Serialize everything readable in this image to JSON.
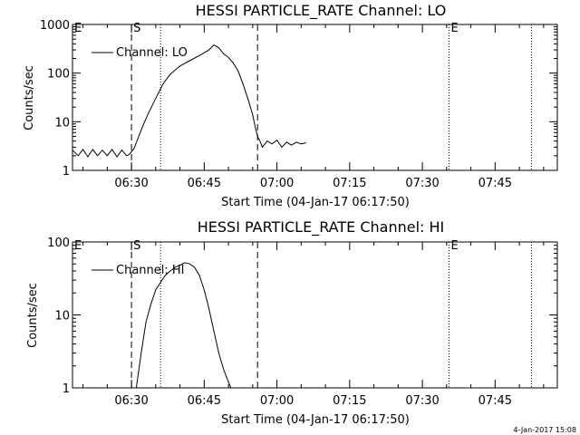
{
  "footer_stamp": "4-Jan-2017 15:08",
  "chart_data": [
    {
      "type": "line",
      "title": "HESSI PARTICLE_RATE Channel: LO",
      "xlabel": "Start Time (04-Jan-17 06:17:50)",
      "ylabel": "Counts/sec",
      "yscale": "log",
      "xlim": [
        "06:17:50",
        "07:57:50"
      ],
      "ylim": [
        1,
        1000
      ],
      "x_ticks": [
        "06:30",
        "06:45",
        "07:00",
        "07:15",
        "07:30",
        "07:45"
      ],
      "y_ticks": [
        "1",
        "10",
        "100",
        "1000"
      ],
      "legend": {
        "label": "Channel: LO",
        "placement": "top-left"
      },
      "markers": [
        {
          "label": "E",
          "time": "06:17:50",
          "style": "dotted"
        },
        {
          "label": "S",
          "time": "06:30:00",
          "style": "dashed"
        },
        {
          "label": "",
          "time": "06:36:00",
          "style": "dotted"
        },
        {
          "label": "",
          "time": "06:56:00",
          "style": "dashed"
        },
        {
          "label": "E",
          "time": "07:35:30",
          "style": "dotted"
        },
        {
          "label": "",
          "time": "07:52:30",
          "style": "dotted"
        }
      ],
      "series": [
        {
          "name": "Channel: LO",
          "x": [
            "06:17:50",
            "06:19:00",
            "06:20:00",
            "06:21:00",
            "06:22:00",
            "06:23:00",
            "06:24:00",
            "06:25:00",
            "06:26:00",
            "06:27:00",
            "06:28:00",
            "06:29:00",
            "06:29:30",
            "06:30:30",
            "06:31:30",
            "06:32:30",
            "06:33:30",
            "06:35:00",
            "06:36:30",
            "06:38:00",
            "06:40:00",
            "06:42:00",
            "06:44:00",
            "06:46:00",
            "06:47:00",
            "06:48:00",
            "06:49:00",
            "06:50:00",
            "06:51:00",
            "06:52:00",
            "06:53:00",
            "06:54:00",
            "06:55:00",
            "06:55:30",
            "06:56:00",
            "06:56:30",
            "06:57:00",
            "06:58:00",
            "06:59:00",
            "07:00:00",
            "07:01:00",
            "07:02:00",
            "07:03:00",
            "07:04:00",
            "07:05:00",
            "07:06:00"
          ],
          "y": [
            2.6,
            2.0,
            2.7,
            1.9,
            2.7,
            2.0,
            2.6,
            2.0,
            2.7,
            1.9,
            2.6,
            2.0,
            2.1,
            2.8,
            5,
            9,
            15,
            30,
            60,
            95,
            140,
            180,
            230,
            300,
            380,
            330,
            250,
            210,
            160,
            110,
            60,
            30,
            14,
            8,
            5,
            4,
            3,
            4,
            3.5,
            4.2,
            3,
            3.8,
            3.3,
            3.8,
            3.5,
            3.7
          ]
        }
      ]
    },
    {
      "type": "line",
      "title": "HESSI PARTICLE_RATE Channel: HI",
      "xlabel": "Start Time (04-Jan-17 06:17:50)",
      "ylabel": "Counts/sec",
      "yscale": "log",
      "xlim": [
        "06:17:50",
        "07:57:50"
      ],
      "ylim": [
        1,
        100
      ],
      "x_ticks": [
        "06:30",
        "06:45",
        "07:00",
        "07:15",
        "07:30",
        "07:45"
      ],
      "y_ticks": [
        "1",
        "10",
        "100"
      ],
      "legend": {
        "label": "Channel: HI",
        "placement": "top-left"
      },
      "markers": [
        {
          "label": "E",
          "time": "06:17:50",
          "style": "dotted"
        },
        {
          "label": "S",
          "time": "06:30:00",
          "style": "dashed"
        },
        {
          "label": "",
          "time": "06:36:00",
          "style": "dotted"
        },
        {
          "label": "",
          "time": "06:56:00",
          "style": "dashed"
        },
        {
          "label": "E",
          "time": "07:35:30",
          "style": "dotted"
        },
        {
          "label": "",
          "time": "07:52:30",
          "style": "dotted"
        }
      ],
      "series": [
        {
          "name": "Channel: HI",
          "x": [
            "06:31:00",
            "06:32:00",
            "06:33:00",
            "06:34:00",
            "06:35:00",
            "06:36:00",
            "06:37:00",
            "06:38:00",
            "06:39:00",
            "06:40:00",
            "06:41:00",
            "06:42:00",
            "06:43:00",
            "06:44:00",
            "06:45:00",
            "06:46:00",
            "06:47:00",
            "06:48:00",
            "06:49:00",
            "06:50:00",
            "06:50:30"
          ],
          "y": [
            1.0,
            3,
            8,
            14,
            22,
            28,
            35,
            40,
            45,
            48,
            52,
            50,
            45,
            35,
            22,
            12,
            6,
            3,
            1.8,
            1.2,
            1.0
          ]
        }
      ]
    }
  ]
}
